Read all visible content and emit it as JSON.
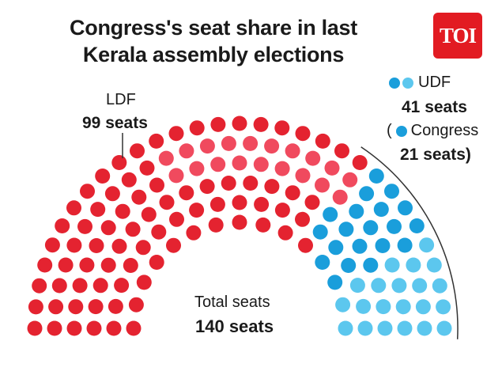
{
  "title_line1": "Congress's seat share in last",
  "title_line2": "Kerala assembly elections",
  "logo_text": "TOI",
  "labels": {
    "ldf_name": "LDF",
    "ldf_seats": "99 seats",
    "udf_name": "UDF",
    "udf_seats": "41 seats",
    "open_paren": "(",
    "congress_name": "Congress",
    "congress_seats": "21 seats)",
    "total_name": "Total seats",
    "total_seats": "140 seats"
  },
  "colors": {
    "ldf_dark": "#e42330",
    "ldf_light": "#f04a5e",
    "udf_other": "#1a9edb",
    "congress": "#5cc7ee",
    "logo_bg": "#e21b22"
  },
  "chart_data": {
    "type": "parliament",
    "total": 140,
    "series": [
      {
        "name": "LDF",
        "value": 99
      },
      {
        "name": "UDF",
        "value": 41
      },
      {
        "name": "Congress",
        "value": 21
      }
    ]
  }
}
